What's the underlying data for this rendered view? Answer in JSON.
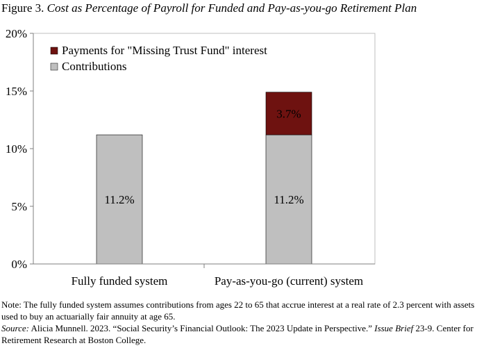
{
  "figure": {
    "label": "Figure 3.",
    "title": "Cost as Percentage of Payroll for Funded and Pay-as-you-go Retirement Plan"
  },
  "chart_data": {
    "type": "bar",
    "stacked": true,
    "categories": [
      "Fully funded system",
      "Pay-as-you-go (current) system"
    ],
    "series": [
      {
        "name": "Contributions",
        "values": [
          11.2,
          11.2
        ],
        "color": "#bfbfbf",
        "labels": [
          "11.2%",
          "11.2%"
        ]
      },
      {
        "name": "Payments for \"Missing Trust Fund\" interest",
        "values": [
          0,
          3.7
        ],
        "color": "#6e1210",
        "labels": [
          "",
          "3.7%"
        ]
      }
    ],
    "ylim": [
      0,
      20
    ],
    "yticks": [
      "0%",
      "5%",
      "10%",
      "15%",
      "20%"
    ],
    "legend_position": "top-left",
    "grid": false
  },
  "notes": {
    "note": "Note: The fully funded system assumes contributions from ages 22 to 65 that accrue interest at a real rate of 2.3 percent with assets used to buy an actuarially fair annuity at age 65.",
    "source_label": "Source:",
    "source_before": " Alicia Munnell. 2023. “Social Security’s Financial Outlook: The 2023 Update in Perspective.” ",
    "source_italic": "Issue Brief",
    "source_after": " 23-9. Center for Retirement Research at Boston College."
  }
}
